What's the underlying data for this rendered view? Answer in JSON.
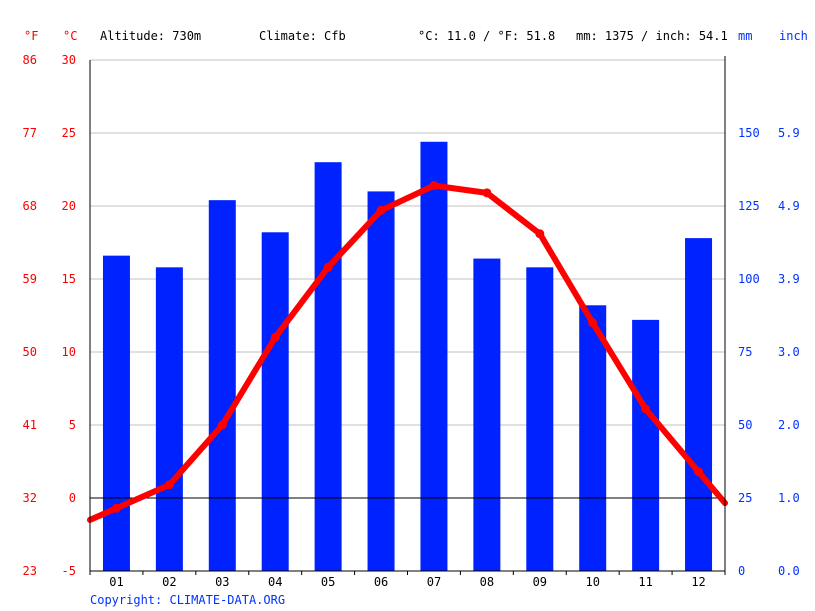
{
  "header": {
    "f_unit": "°F",
    "c_unit": "°C",
    "altitude": "Altitude: 730m",
    "climate": "Climate: Cfb",
    "avg_temp": "°C: 11.0 / °F: 51.8",
    "precip_total": "mm: 1375 / inch: 54.1",
    "mm_unit": "mm",
    "inch_unit": "inch"
  },
  "copyright": "Copyright: CLIMATE-DATA.ORG",
  "colors": {
    "temperature": "#ff0000",
    "precipitation": "#0022ff",
    "grid": "#c0c0c0",
    "zero_line": "#000000"
  },
  "chart_data": {
    "type": "bar",
    "categories": [
      "01",
      "02",
      "03",
      "04",
      "05",
      "06",
      "07",
      "08",
      "09",
      "10",
      "11",
      "12"
    ],
    "series": [
      {
        "unit": "mm",
        "type": "bar",
        "values": [
          108,
          104,
          127,
          116,
          140,
          130,
          147,
          107,
          104,
          91,
          86,
          114
        ]
      },
      {
        "unit": "°C",
        "type": "line",
        "values": [
          -0.7,
          0.9,
          5.0,
          11.0,
          15.8,
          19.7,
          21.4,
          20.9,
          18.1,
          12.0,
          6.1,
          1.8
        ]
      }
    ],
    "temp_axis_c": {
      "ylim": [
        -5,
        30
      ],
      "ticks": [
        "-5",
        "0",
        "5",
        "10",
        "15",
        "20",
        "25",
        "30"
      ]
    },
    "temp_axis_f": {
      "ylim": [
        23,
        86
      ],
      "ticks": [
        "23",
        "32",
        "41",
        "50",
        "59",
        "68",
        "77",
        "86"
      ]
    },
    "precip_axis_mm": {
      "ylim": [
        0,
        175
      ],
      "ticks": [
        "0",
        "25",
        "50",
        "75",
        "100",
        "125",
        "150"
      ]
    },
    "precip_axis_inch": {
      "ticks": [
        "0.0",
        "1.0",
        "2.0",
        "3.0",
        "3.9",
        "4.9",
        "5.9"
      ]
    },
    "grid": true
  }
}
